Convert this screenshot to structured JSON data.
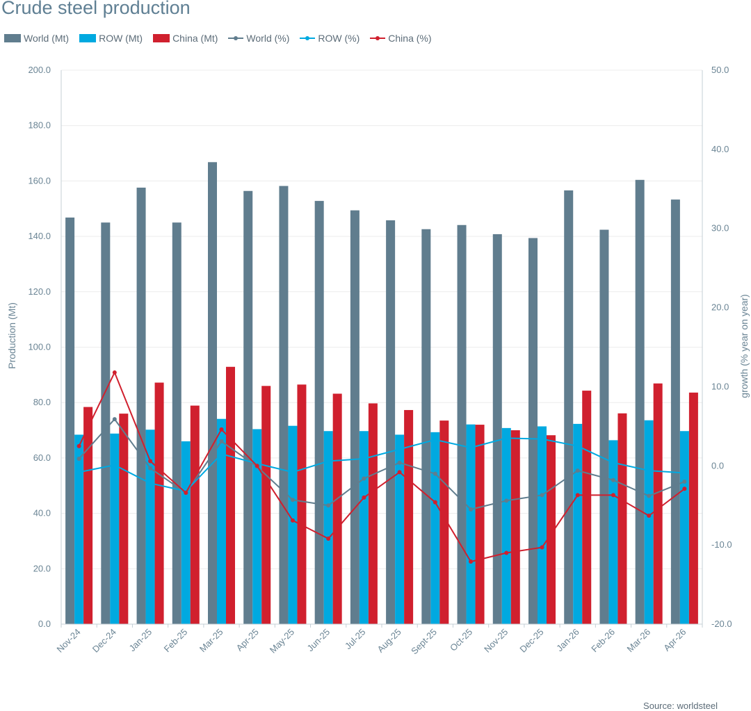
{
  "chart_data": {
    "type": "bar",
    "title": "Crude steel production",
    "source": "Source: worldsteel",
    "categories": [
      "Nov-24",
      "Dec-24",
      "Jan-25",
      "Feb-25",
      "Mar-25",
      "Apr-25",
      "May-25",
      "Jun-25",
      "Jul-25",
      "Aug-25",
      "Sept-25",
      "Oct-25",
      "Nov-25",
      "Dec-25",
      "Jan-26",
      "Feb-26",
      "Mar-26",
      "Apr-26"
    ],
    "ylabel_left": "Production (Mt)",
    "ylabel_right": "growth (% year on year)",
    "ylim_left": [
      0,
      200
    ],
    "ylim_right": [
      -20,
      50
    ],
    "yticks_left": [
      "0.0",
      "20.0",
      "40.0",
      "60.0",
      "80.0",
      "100.0",
      "120.0",
      "140.0",
      "160.0",
      "180.0",
      "200.0"
    ],
    "yticks_right": [
      "-20.0",
      "-10.0",
      "0.0",
      "10.0",
      "20.0",
      "30.0",
      "40.0",
      "50.0"
    ],
    "grid": true,
    "legend_position": "top-left",
    "bar_series": [
      {
        "name": "World (Mt)",
        "color": "#607d8e",
        "values": [
          146.8,
          145.0,
          157.6,
          145.0,
          166.8,
          156.4,
          158.2,
          152.8,
          149.4,
          145.8,
          142.6,
          144.1,
          140.8,
          139.4,
          156.6,
          142.4,
          160.4,
          153.3
        ]
      },
      {
        "name": "ROW (Mt)",
        "color": "#00a9e0",
        "values": [
          68.4,
          68.8,
          70.2,
          66.0,
          74.1,
          70.4,
          71.6,
          69.7,
          69.7,
          68.4,
          69.3,
          72.1,
          70.8,
          71.4,
          72.3,
          66.4,
          73.6,
          69.7
        ]
      },
      {
        "name": "China (Mt)",
        "color": "#d0202e",
        "values": [
          78.4,
          76.0,
          87.2,
          78.9,
          92.9,
          86.0,
          86.5,
          83.2,
          79.7,
          77.3,
          73.5,
          72.0,
          70.0,
          68.2,
          84.3,
          76.1,
          86.9,
          83.6
        ]
      }
    ],
    "line_series": [
      {
        "name": "World (%)",
        "color": "#607d8e",
        "values": [
          0.9,
          5.9,
          -0.3,
          -3.4,
          3.1,
          -0.1,
          -4.3,
          -5.0,
          -1.6,
          0.4,
          -1.0,
          -5.5,
          -4.4,
          -3.7,
          -0.6,
          -1.8,
          -3.8,
          -2.0
        ]
      },
      {
        "name": "ROW (%)",
        "color": "#00a9e0",
        "values": [
          -0.8,
          0.1,
          -2.2,
          -3.2,
          1.5,
          0.3,
          -0.8,
          0.6,
          0.9,
          2.1,
          3.3,
          2.3,
          3.5,
          3.4,
          2.5,
          0.4,
          -0.6,
          -0.9
        ]
      },
      {
        "name": "China (%)",
        "color": "#d0202e",
        "values": [
          2.5,
          11.8,
          0.6,
          -3.4,
          4.6,
          0.0,
          -6.9,
          -9.2,
          -4.0,
          -0.8,
          -4.6,
          -12.1,
          -11.0,
          -10.3,
          -3.7,
          -3.7,
          -6.3,
          -2.9
        ]
      }
    ]
  }
}
